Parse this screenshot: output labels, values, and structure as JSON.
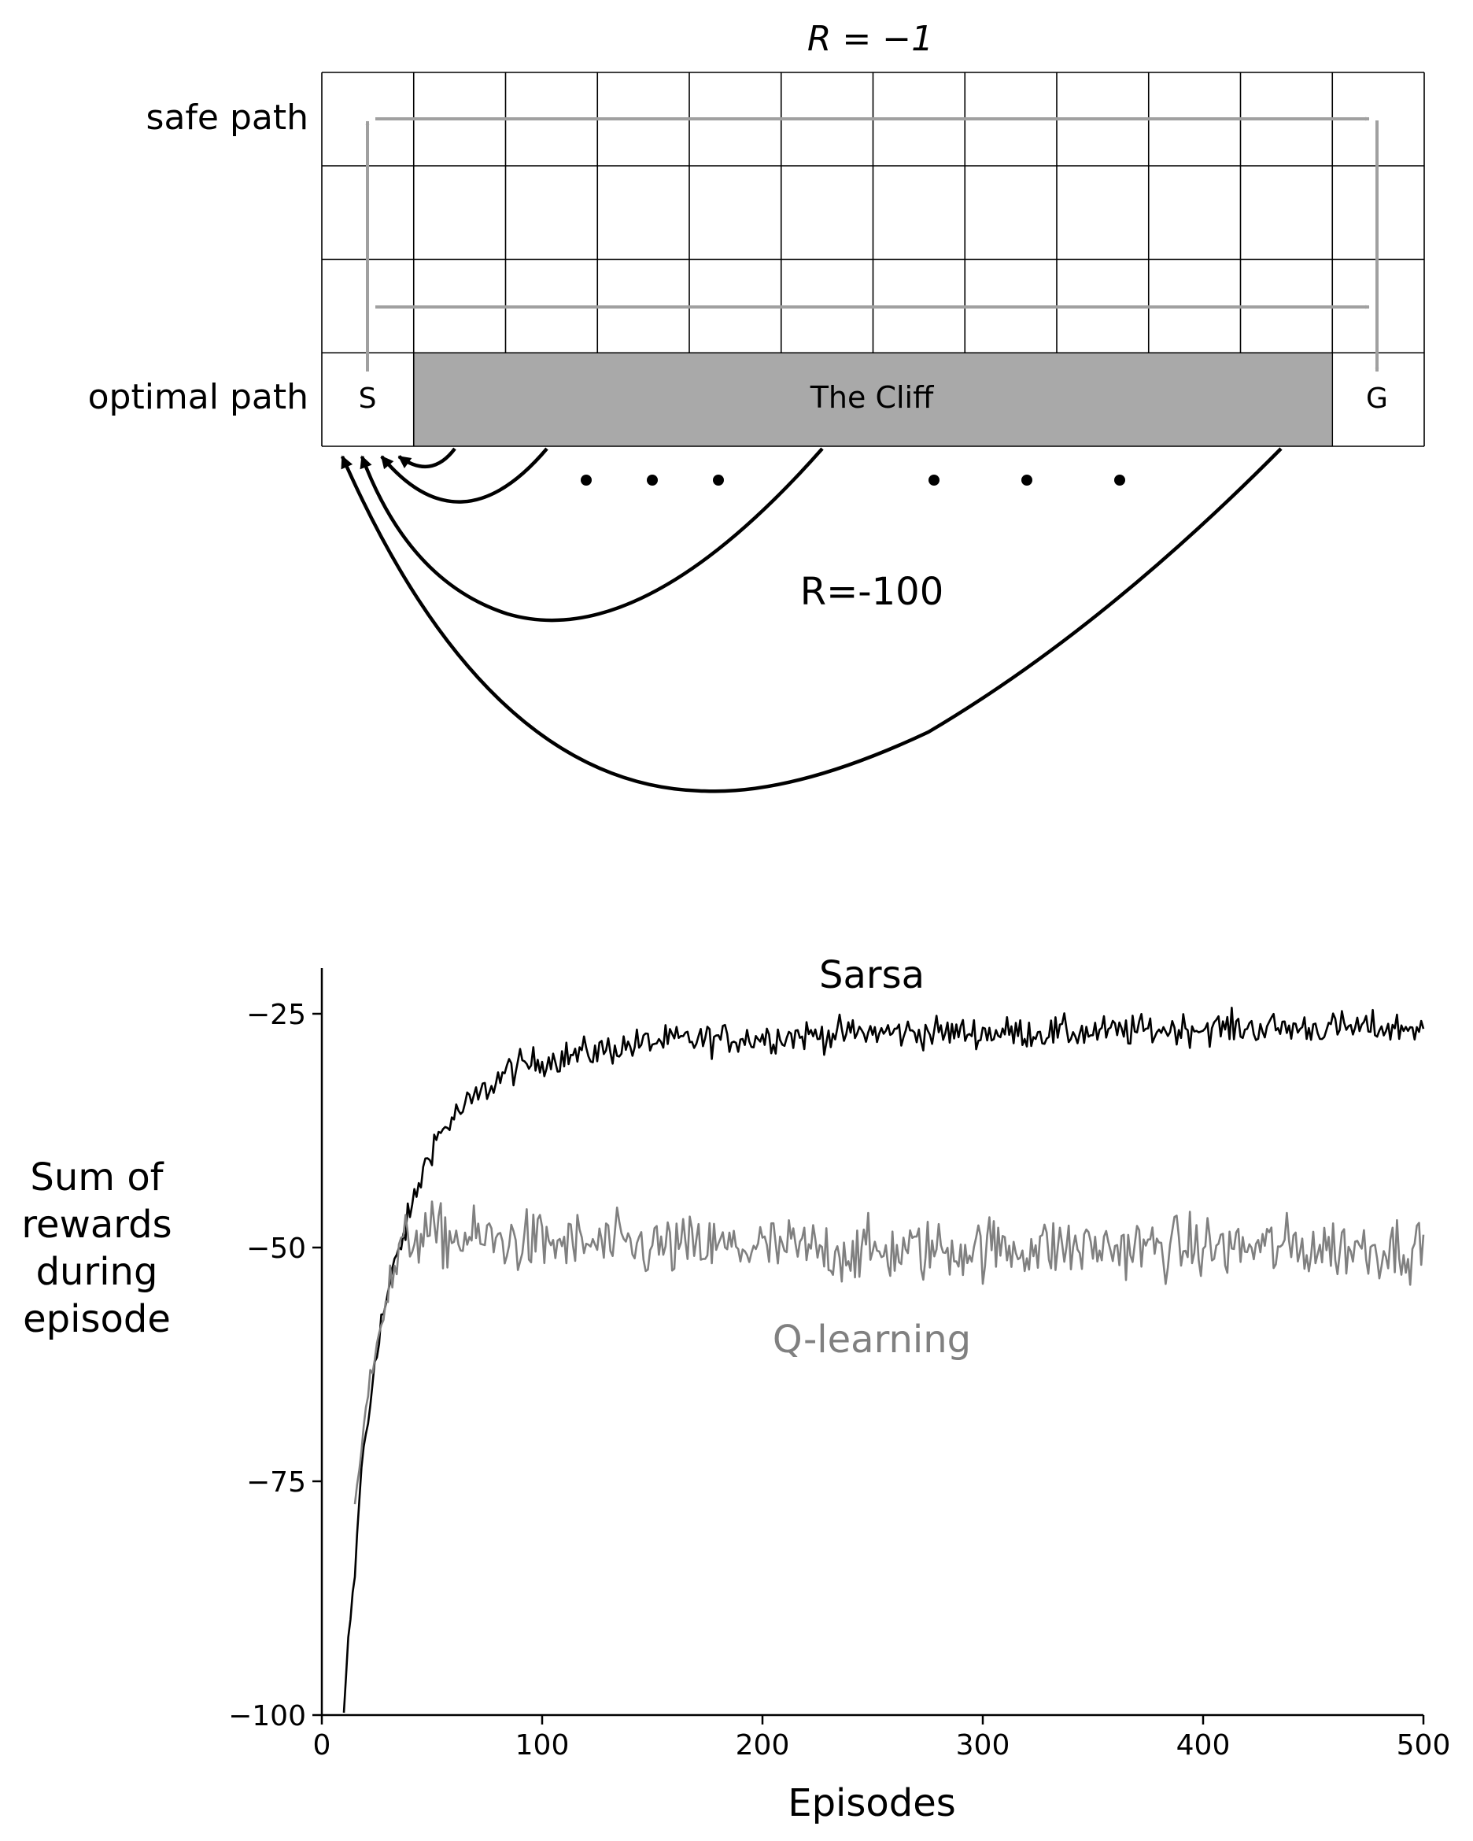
{
  "gridworld": {
    "title_reward": "R = −1",
    "safe_path_label": "safe path",
    "optimal_path_label": "optimal path",
    "start_label": "S",
    "goal_label": "G",
    "cliff_label": "The Cliff",
    "cliff_reward": "R=-100",
    "rows": 4,
    "cols": 12,
    "colors": {
      "cliff": "#a9a9a9",
      "path_arrow": "#a0a0a0",
      "grid_line": "#000000"
    }
  },
  "chart_data": {
    "type": "line",
    "title": "Sarsa",
    "xlabel": "Episodes",
    "ylabel": "Sum of rewards during episode",
    "ylabel_lines": [
      "Sum of",
      "rewards",
      "during",
      "episode"
    ],
    "xlim": [
      0,
      500
    ],
    "ylim": [
      -105,
      -20
    ],
    "xticks": [
      0,
      100,
      200,
      300,
      400,
      500
    ],
    "yticks": [
      -100,
      -75,
      -50,
      -25
    ],
    "xtick_labels": [
      "0",
      "100",
      "200",
      "300",
      "400",
      "500"
    ],
    "ytick_labels": [
      "−100",
      "−75",
      "−50",
      "−25"
    ],
    "grid": false,
    "series": [
      {
        "name": "Sarsa",
        "color": "#000000",
        "anchors": [
          [
            10,
            -100
          ],
          [
            12,
            -92
          ],
          [
            15,
            -85
          ],
          [
            18,
            -73
          ],
          [
            21,
            -69
          ],
          [
            24,
            -62
          ],
          [
            27,
            -58
          ],
          [
            30,
            -55
          ],
          [
            33,
            -52
          ],
          [
            38,
            -48
          ],
          [
            43,
            -44
          ],
          [
            50,
            -39
          ],
          [
            60,
            -36
          ],
          [
            70,
            -34
          ],
          [
            85,
            -31
          ],
          [
            100,
            -30
          ],
          [
            125,
            -29
          ],
          [
            150,
            -28
          ],
          [
            200,
            -27.5
          ],
          [
            250,
            -27
          ],
          [
            300,
            -27
          ],
          [
            350,
            -27
          ],
          [
            400,
            -26.5
          ],
          [
            450,
            -26.5
          ],
          [
            500,
            -26.5
          ]
        ],
        "noise": 1.2
      },
      {
        "name": "Q-learning",
        "color": "#808080",
        "anchors": [
          [
            15,
            -78
          ],
          [
            18,
            -72
          ],
          [
            21,
            -65
          ],
          [
            25,
            -59
          ],
          [
            30,
            -55
          ],
          [
            35,
            -51
          ],
          [
            40,
            -49
          ],
          [
            45,
            -48.5
          ],
          [
            60,
            -49
          ],
          [
            100,
            -49.5
          ],
          [
            150,
            -50
          ],
          [
            200,
            -50
          ],
          [
            250,
            -50.5
          ],
          [
            300,
            -50
          ],
          [
            350,
            -50
          ],
          [
            400,
            -50
          ],
          [
            450,
            -50
          ],
          [
            500,
            -50
          ]
        ],
        "noise": 2.4
      }
    ],
    "annotations": [
      {
        "text": "Q-learning",
        "color": "#808080"
      }
    ]
  }
}
